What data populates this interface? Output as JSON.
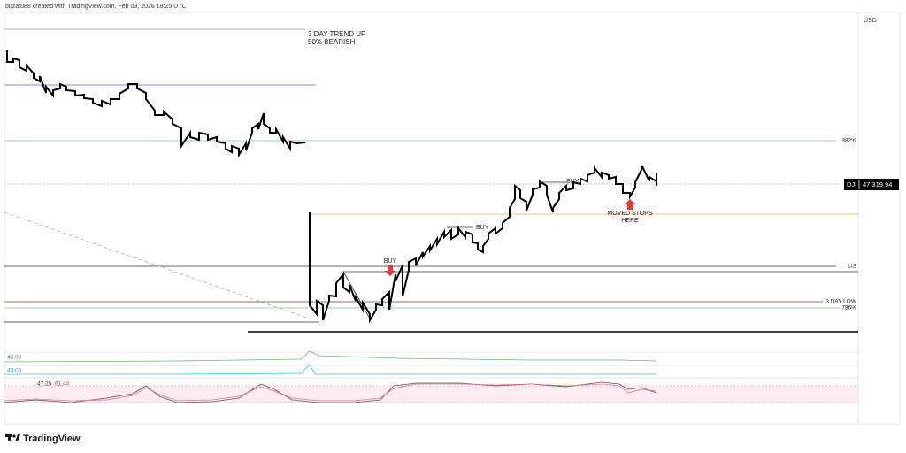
{
  "header": {
    "caption": "buzatu88 created with TradingView.com, Feb 03, 2026 18:25 UTC",
    "currency": "USD"
  },
  "annotations": {
    "trend_line1": "3 DAY TREND UP",
    "trend_line2": "50% BEARISH",
    "buy_1": "BUY",
    "buy_2": "BUY",
    "buy_3": "BUY",
    "stops_line1": "MOVED STOPS",
    "stops_line2": "HERE"
  },
  "levels": {
    "fib_382": "382%",
    "lis": "LIS",
    "low_3day": "3 DAY LOW",
    "fib_786": "786%"
  },
  "price_label": {
    "symbol": "DJI",
    "price": "47,319.94"
  },
  "indicators": {
    "pane1": "42.00",
    "pane2": "43.00",
    "pane3_a": "47.25",
    "pane3_b": "61.44"
  },
  "footer": {
    "brand": "TradingView"
  }
}
